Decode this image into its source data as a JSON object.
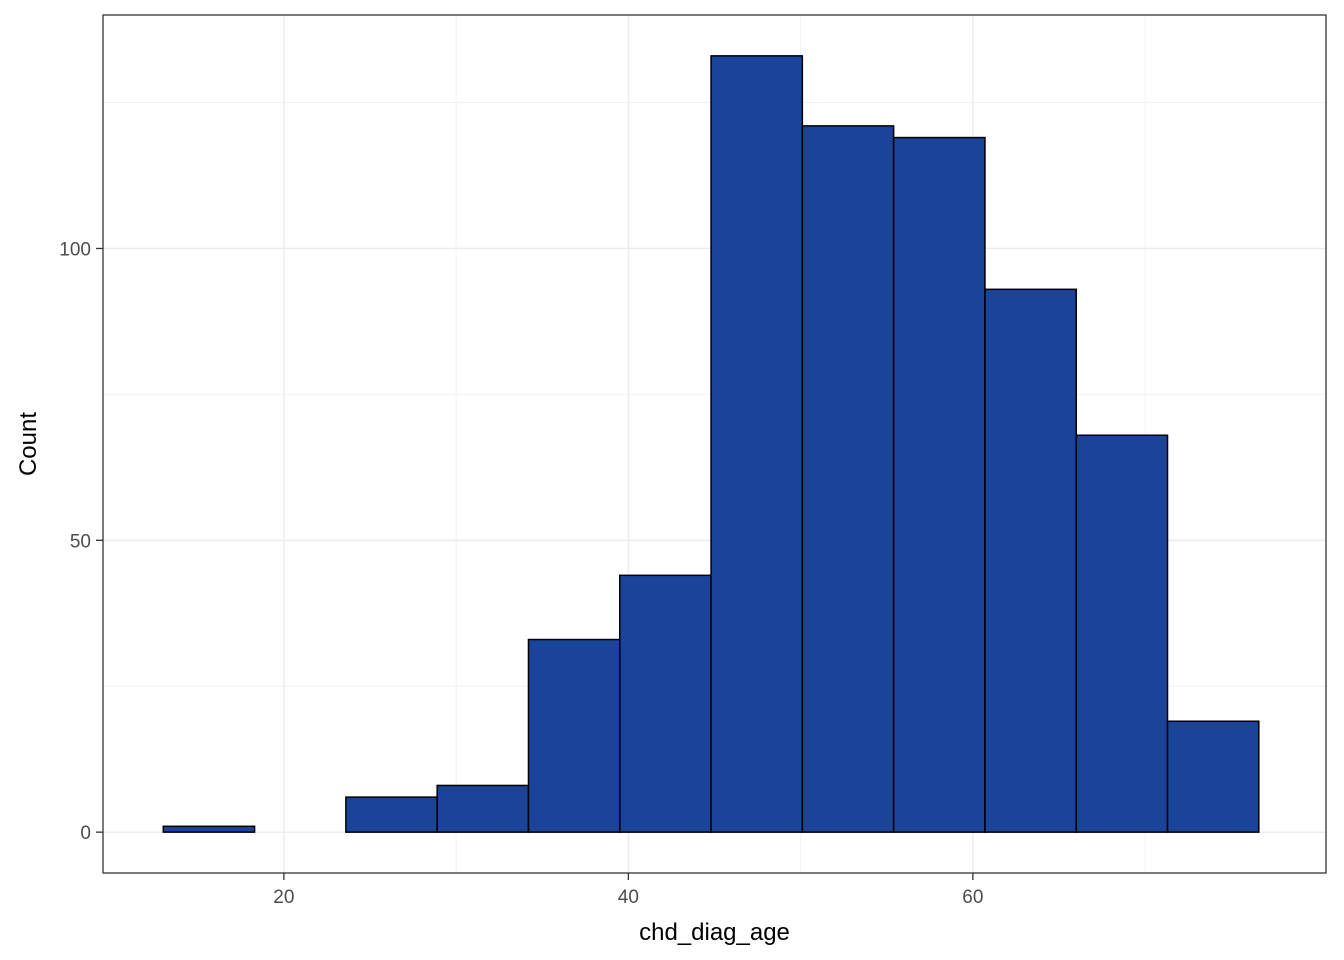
{
  "chart_data": {
    "type": "bar",
    "subtype": "histogram",
    "xlabel": "chd_diag_age",
    "ylabel": "Count",
    "xlim": [
      9.5,
      80.5
    ],
    "ylim": [
      -7,
      140
    ],
    "x_ticks": [
      20,
      40,
      60
    ],
    "x_minor_ticks": [
      30,
      50,
      70
    ],
    "y_ticks": [
      0,
      50,
      100
    ],
    "y_minor_ticks": [
      25,
      75,
      125
    ],
    "grid": true,
    "fill_color": "#1a4499",
    "edge_color": "#000000",
    "bins": [
      {
        "x0": 13.0,
        "x1": 18.3,
        "count": 1
      },
      {
        "x0": 18.3,
        "x1": 23.6,
        "count": 0
      },
      {
        "x0": 23.6,
        "x1": 28.9,
        "count": 6
      },
      {
        "x0": 28.9,
        "x1": 34.2,
        "count": 8
      },
      {
        "x0": 34.2,
        "x1": 39.5,
        "count": 33
      },
      {
        "x0": 39.5,
        "x1": 44.8,
        "count": 44
      },
      {
        "x0": 44.8,
        "x1": 50.1,
        "count": 133
      },
      {
        "x0": 50.1,
        "x1": 55.4,
        "count": 121
      },
      {
        "x0": 55.4,
        "x1": 60.7,
        "count": 119
      },
      {
        "x0": 60.7,
        "x1": 66.0,
        "count": 93
      },
      {
        "x0": 66.0,
        "x1": 71.3,
        "count": 68
      },
      {
        "x0": 71.3,
        "x1": 76.6,
        "count": 19
      }
    ]
  }
}
